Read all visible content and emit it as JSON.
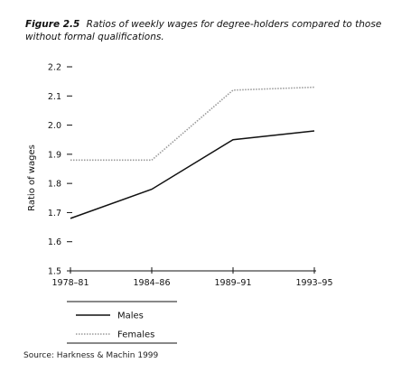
{
  "figure": {
    "label": "Figure 2.5",
    "title": "Ratios of weekly wages for degree-holders compared to those without formal qualifications.",
    "source": "Source: Harkness & Machin 1999"
  },
  "chart_data": {
    "type": "line",
    "title": "Ratios of weekly wages for degree-holders compared to those without formal qualifications.",
    "xlabel": "",
    "ylabel": "Ratio of wages",
    "categories": [
      "1978–81",
      "1984–86",
      "1989–91",
      "1993–95"
    ],
    "yticks": [
      "1.5",
      "1.6",
      "1.7",
      "1.8",
      "1.9",
      "2.0",
      "2.1",
      "2.2"
    ],
    "ylim": [
      1.5,
      2.2
    ],
    "grid": false,
    "legend_position": "bottom-left",
    "series": [
      {
        "name": "Males",
        "values": [
          1.68,
          1.78,
          1.95,
          1.98
        ],
        "color": "#111111",
        "style": "solid"
      },
      {
        "name": "Females",
        "values": [
          1.88,
          1.88,
          2.12,
          2.13
        ],
        "color": "#9a9a9a",
        "style": "dotted"
      }
    ]
  }
}
